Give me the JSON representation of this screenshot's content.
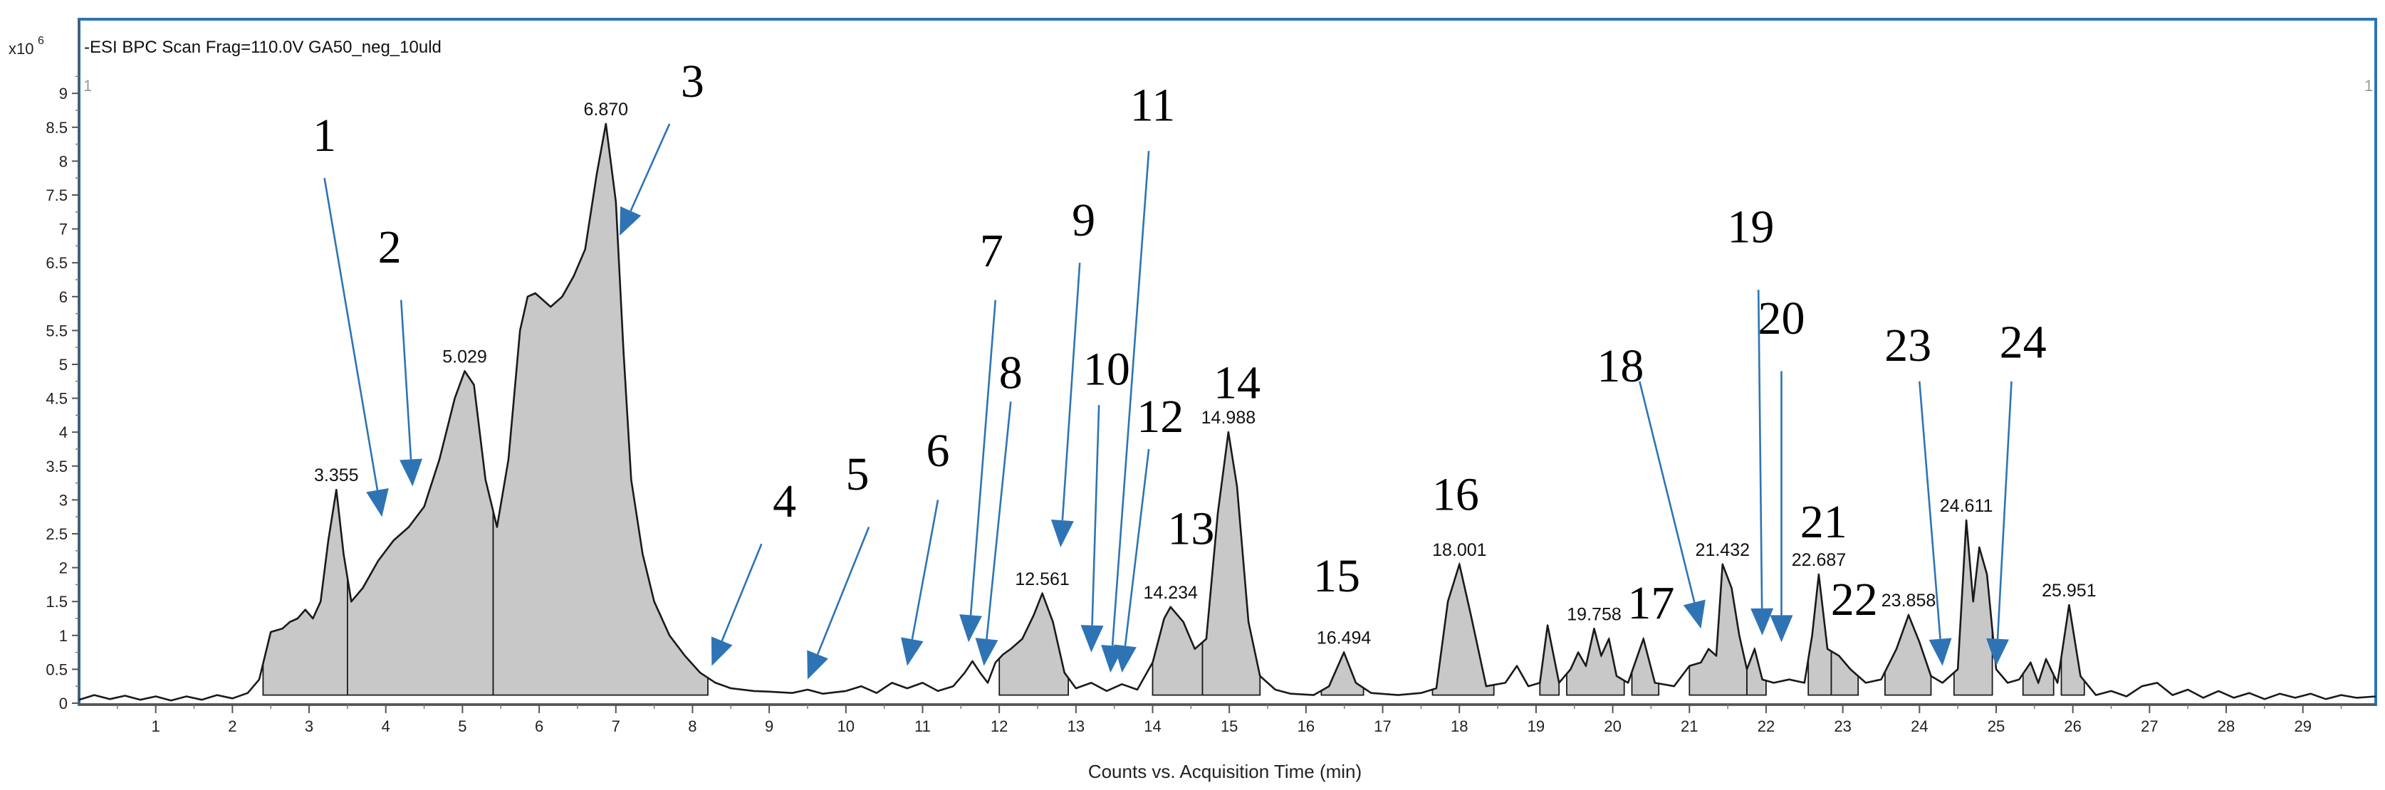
{
  "chart_data": {
    "type": "area",
    "title": "-ESI BPC Scan Frag=110.0V GA50_neg_10uld",
    "xlabel": "Counts vs. Acquisition Time (min)",
    "y_multiplier_label": "x10",
    "y_multiplier_exp": "6",
    "corner_left": "1",
    "corner_right": "1",
    "xlim": [
      0,
      29.95
    ],
    "ylim": [
      0,
      9.5
    ],
    "x_ticks": [
      1,
      2,
      3,
      4,
      5,
      6,
      7,
      8,
      9,
      10,
      11,
      12,
      13,
      14,
      15,
      16,
      17,
      18,
      19,
      20,
      21,
      22,
      23,
      24,
      25,
      26,
      27,
      28,
      29
    ],
    "y_ticks": [
      0,
      0.5,
      1,
      1.5,
      2,
      2.5,
      3,
      3.5,
      4,
      4.5,
      5,
      5.5,
      6,
      6.5,
      7,
      7.5,
      8,
      8.5,
      9
    ],
    "colors": {
      "fill": "#c8c8c8",
      "line": "#1a1a1a",
      "frame": "#2e74b5",
      "arrow": "#2e74b5"
    },
    "series": [
      {
        "points": [
          [
            0,
            0.05
          ],
          [
            0.2,
            0.12
          ],
          [
            0.4,
            0.06
          ],
          [
            0.6,
            0.11
          ],
          [
            0.8,
            0.05
          ],
          [
            1.0,
            0.1
          ],
          [
            1.2,
            0.04
          ],
          [
            1.4,
            0.1
          ],
          [
            1.6,
            0.05
          ],
          [
            1.8,
            0.12
          ],
          [
            2.0,
            0.07
          ],
          [
            2.2,
            0.15
          ],
          [
            2.35,
            0.35
          ],
          [
            2.5,
            1.05
          ],
          [
            2.65,
            1.1
          ],
          [
            2.75,
            1.2
          ],
          [
            2.85,
            1.25
          ],
          [
            2.95,
            1.38
          ],
          [
            3.05,
            1.25
          ],
          [
            3.15,
            1.5
          ],
          [
            3.25,
            2.4
          ],
          [
            3.355,
            3.15
          ],
          [
            3.45,
            2.2
          ],
          [
            3.55,
            1.5
          ],
          [
            3.7,
            1.7
          ],
          [
            3.9,
            2.1
          ],
          [
            4.1,
            2.4
          ],
          [
            4.3,
            2.6
          ],
          [
            4.5,
            2.9
          ],
          [
            4.7,
            3.6
          ],
          [
            4.9,
            4.5
          ],
          [
            5.029,
            4.9
          ],
          [
            5.15,
            4.7
          ],
          [
            5.3,
            3.3
          ],
          [
            5.45,
            2.6
          ],
          [
            5.6,
            3.6
          ],
          [
            5.75,
            5.5
          ],
          [
            5.85,
            6.0
          ],
          [
            5.95,
            6.05
          ],
          [
            6.05,
            5.95
          ],
          [
            6.15,
            5.85
          ],
          [
            6.3,
            6.0
          ],
          [
            6.45,
            6.3
          ],
          [
            6.6,
            6.7
          ],
          [
            6.75,
            7.8
          ],
          [
            6.87,
            8.55
          ],
          [
            7.0,
            7.4
          ],
          [
            7.1,
            5.2
          ],
          [
            7.2,
            3.3
          ],
          [
            7.35,
            2.2
          ],
          [
            7.5,
            1.5
          ],
          [
            7.7,
            1.0
          ],
          [
            7.9,
            0.7
          ],
          [
            8.1,
            0.45
          ],
          [
            8.3,
            0.3
          ],
          [
            8.5,
            0.22
          ],
          [
            8.8,
            0.18
          ],
          [
            9.0,
            0.17
          ],
          [
            9.3,
            0.15
          ],
          [
            9.5,
            0.2
          ],
          [
            9.7,
            0.14
          ],
          [
            10.0,
            0.18
          ],
          [
            10.2,
            0.25
          ],
          [
            10.4,
            0.15
          ],
          [
            10.6,
            0.3
          ],
          [
            10.8,
            0.22
          ],
          [
            11.0,
            0.3
          ],
          [
            11.2,
            0.18
          ],
          [
            11.4,
            0.25
          ],
          [
            11.55,
            0.45
          ],
          [
            11.65,
            0.62
          ],
          [
            11.75,
            0.45
          ],
          [
            11.85,
            0.3
          ],
          [
            11.95,
            0.6
          ],
          [
            12.05,
            0.72
          ],
          [
            12.15,
            0.8
          ],
          [
            12.3,
            0.95
          ],
          [
            12.45,
            1.3
          ],
          [
            12.561,
            1.62
          ],
          [
            12.7,
            1.2
          ],
          [
            12.85,
            0.45
          ],
          [
            13.0,
            0.22
          ],
          [
            13.2,
            0.3
          ],
          [
            13.4,
            0.18
          ],
          [
            13.6,
            0.28
          ],
          [
            13.8,
            0.2
          ],
          [
            14.0,
            0.6
          ],
          [
            14.15,
            1.25
          ],
          [
            14.234,
            1.42
          ],
          [
            14.4,
            1.2
          ],
          [
            14.55,
            0.8
          ],
          [
            14.7,
            0.95
          ],
          [
            14.85,
            2.8
          ],
          [
            14.988,
            4.0
          ],
          [
            15.1,
            3.2
          ],
          [
            15.25,
            1.2
          ],
          [
            15.4,
            0.4
          ],
          [
            15.6,
            0.2
          ],
          [
            15.8,
            0.14
          ],
          [
            16.1,
            0.12
          ],
          [
            16.3,
            0.25
          ],
          [
            16.494,
            0.75
          ],
          [
            16.65,
            0.3
          ],
          [
            16.85,
            0.15
          ],
          [
            17.2,
            0.12
          ],
          [
            17.5,
            0.15
          ],
          [
            17.7,
            0.22
          ],
          [
            17.85,
            1.5
          ],
          [
            18.001,
            2.05
          ],
          [
            18.15,
            1.3
          ],
          [
            18.35,
            0.25
          ],
          [
            18.6,
            0.3
          ],
          [
            18.75,
            0.55
          ],
          [
            18.9,
            0.25
          ],
          [
            19.05,
            0.3
          ],
          [
            19.15,
            1.15
          ],
          [
            19.3,
            0.3
          ],
          [
            19.45,
            0.5
          ],
          [
            19.55,
            0.75
          ],
          [
            19.65,
            0.55
          ],
          [
            19.758,
            1.1
          ],
          [
            19.85,
            0.7
          ],
          [
            19.95,
            0.95
          ],
          [
            20.05,
            0.4
          ],
          [
            20.2,
            0.3
          ],
          [
            20.4,
            0.95
          ],
          [
            20.55,
            0.3
          ],
          [
            20.8,
            0.25
          ],
          [
            21.0,
            0.55
          ],
          [
            21.15,
            0.6
          ],
          [
            21.25,
            0.8
          ],
          [
            21.35,
            0.7
          ],
          [
            21.432,
            2.05
          ],
          [
            21.55,
            1.7
          ],
          [
            21.65,
            1.0
          ],
          [
            21.75,
            0.5
          ],
          [
            21.85,
            0.8
          ],
          [
            21.95,
            0.35
          ],
          [
            22.1,
            0.3
          ],
          [
            22.3,
            0.35
          ],
          [
            22.5,
            0.3
          ],
          [
            22.6,
            1.0
          ],
          [
            22.687,
            1.9
          ],
          [
            22.8,
            0.8
          ],
          [
            22.95,
            0.7
          ],
          [
            23.1,
            0.5
          ],
          [
            23.3,
            0.3
          ],
          [
            23.5,
            0.35
          ],
          [
            23.7,
            0.8
          ],
          [
            23.858,
            1.3
          ],
          [
            24.0,
            0.9
          ],
          [
            24.15,
            0.4
          ],
          [
            24.3,
            0.3
          ],
          [
            24.5,
            0.5
          ],
          [
            24.611,
            2.7
          ],
          [
            24.7,
            1.5
          ],
          [
            24.78,
            2.3
          ],
          [
            24.88,
            1.9
          ],
          [
            25.0,
            0.5
          ],
          [
            25.15,
            0.3
          ],
          [
            25.3,
            0.35
          ],
          [
            25.45,
            0.6
          ],
          [
            25.55,
            0.3
          ],
          [
            25.65,
            0.65
          ],
          [
            25.8,
            0.3
          ],
          [
            25.951,
            1.45
          ],
          [
            26.1,
            0.4
          ],
          [
            26.3,
            0.12
          ],
          [
            26.5,
            0.18
          ],
          [
            26.7,
            0.1
          ],
          [
            26.9,
            0.25
          ],
          [
            27.1,
            0.3
          ],
          [
            27.3,
            0.12
          ],
          [
            27.5,
            0.2
          ],
          [
            27.7,
            0.08
          ],
          [
            27.9,
            0.18
          ],
          [
            28.1,
            0.08
          ],
          [
            28.3,
            0.15
          ],
          [
            28.5,
            0.06
          ],
          [
            28.7,
            0.14
          ],
          [
            28.9,
            0.08
          ],
          [
            29.1,
            0.14
          ],
          [
            29.3,
            0.06
          ],
          [
            29.5,
            0.12
          ],
          [
            29.7,
            0.08
          ],
          [
            29.95,
            0.1
          ]
        ]
      }
    ],
    "filled_regions": [
      [
        2.4,
        3.5
      ],
      [
        3.5,
        5.4
      ],
      [
        5.4,
        8.2
      ],
      [
        12.0,
        12.9
      ],
      [
        14.0,
        14.65
      ],
      [
        14.65,
        15.4
      ],
      [
        16.2,
        16.75
      ],
      [
        17.65,
        18.45
      ],
      [
        19.05,
        19.3
      ],
      [
        19.4,
        20.15
      ],
      [
        20.25,
        20.6
      ],
      [
        21.0,
        21.75
      ],
      [
        21.75,
        22.0
      ],
      [
        22.55,
        22.85
      ],
      [
        22.85,
        23.2
      ],
      [
        23.55,
        24.15
      ],
      [
        24.45,
        24.95
      ],
      [
        25.35,
        25.75
      ],
      [
        25.85,
        26.15
      ]
    ],
    "peak_labels": [
      {
        "x": 3.355,
        "y": 3.15,
        "text": "3.355"
      },
      {
        "x": 5.029,
        "y": 4.9,
        "text": "5.029"
      },
      {
        "x": 6.87,
        "y": 8.55,
        "text": "6.870"
      },
      {
        "x": 12.561,
        "y": 1.62,
        "text": "12.561"
      },
      {
        "x": 14.234,
        "y": 1.42,
        "text": "14.234"
      },
      {
        "x": 14.988,
        "y": 4.0,
        "text": "14.988"
      },
      {
        "x": 16.494,
        "y": 0.75,
        "text": "16.494"
      },
      {
        "x": 18.001,
        "y": 2.05,
        "text": "18.001"
      },
      {
        "x": 19.758,
        "y": 1.1,
        "text": "19.758"
      },
      {
        "x": 21.432,
        "y": 2.05,
        "text": "21.432"
      },
      {
        "x": 22.687,
        "y": 1.9,
        "text": "22.687"
      },
      {
        "x": 23.858,
        "y": 1.3,
        "text": "23.858"
      },
      {
        "x": 24.611,
        "y": 2.7,
        "text": "24.611"
      },
      {
        "x": 25.951,
        "y": 1.45,
        "text": "25.951"
      }
    ],
    "callouts": [
      {
        "text": "1",
        "label_x": 3.2,
        "label_y": 8.15,
        "tail_x": 3.2,
        "tail_y": 7.75,
        "tip_x": 3.95,
        "tip_y": 2.75
      },
      {
        "text": "2",
        "label_x": 4.05,
        "label_y": 6.5,
        "tail_x": 4.2,
        "tail_y": 5.95,
        "tip_x": 4.35,
        "tip_y": 3.2
      },
      {
        "text": "3",
        "label_x": 8.0,
        "label_y": 8.95,
        "tail_x": 7.7,
        "tail_y": 8.55,
        "tip_x": 7.05,
        "tip_y": 6.9
      },
      {
        "text": "4",
        "label_x": 9.2,
        "label_y": 2.75,
        "tail_x": 8.9,
        "tail_y": 2.35,
        "tip_x": 8.25,
        "tip_y": 0.55
      },
      {
        "text": "5",
        "label_x": 10.15,
        "label_y": 3.15,
        "tail_x": 10.3,
        "tail_y": 2.6,
        "tip_x": 9.5,
        "tip_y": 0.35
      },
      {
        "text": "6",
        "label_x": 11.2,
        "label_y": 3.5,
        "tail_x": 11.2,
        "tail_y": 3.0,
        "tip_x": 10.8,
        "tip_y": 0.55
      },
      {
        "text": "7",
        "label_x": 11.9,
        "label_y": 6.45,
        "tail_x": 11.95,
        "tail_y": 5.95,
        "tip_x": 11.6,
        "tip_y": 0.9
      },
      {
        "text": "8",
        "label_x": 12.15,
        "label_y": 4.65,
        "tail_x": 12.15,
        "tail_y": 4.45,
        "tip_x": 11.8,
        "tip_y": 0.55
      },
      {
        "text": "9",
        "label_x": 13.1,
        "label_y": 6.9,
        "tail_x": 13.05,
        "tail_y": 6.5,
        "tip_x": 12.8,
        "tip_y": 2.3
      },
      {
        "text": "10",
        "label_x": 13.4,
        "label_y": 4.7,
        "tail_x": 13.3,
        "tail_y": 4.4,
        "tip_x": 13.2,
        "tip_y": 0.75
      },
      {
        "text": "11",
        "label_x": 14.0,
        "label_y": 8.6,
        "tail_x": 13.95,
        "tail_y": 8.15,
        "tip_x": 13.45,
        "tip_y": 0.45
      },
      {
        "text": "12",
        "label_x": 14.1,
        "label_y": 4.0,
        "tail_x": 13.95,
        "tail_y": 3.75,
        "tip_x": 13.6,
        "tip_y": 0.45
      },
      {
        "text": "13",
        "label_x": 14.5,
        "label_y": 2.35,
        "tail_x": 14.5,
        "tail_y": 2.35,
        "tip_x": 14.5,
        "tip_y": 2.35
      },
      {
        "text": "14",
        "label_x": 15.1,
        "label_y": 4.5,
        "tail_x": 15.1,
        "tail_y": 4.5,
        "tip_x": 15.1,
        "tip_y": 4.5
      },
      {
        "text": "15",
        "label_x": 16.4,
        "label_y": 1.65,
        "tail_x": 16.4,
        "tail_y": 1.65,
        "tip_x": 16.4,
        "tip_y": 1.65
      },
      {
        "text": "16",
        "label_x": 17.95,
        "label_y": 2.85,
        "tail_x": 17.95,
        "tail_y": 2.85,
        "tip_x": 17.95,
        "tip_y": 2.85
      },
      {
        "text": "17",
        "label_x": 20.5,
        "label_y": 1.25,
        "tail_x": 20.5,
        "tail_y": 1.25,
        "tip_x": 20.5,
        "tip_y": 1.25
      },
      {
        "text": "18",
        "label_x": 20.1,
        "label_y": 4.75,
        "tail_x": 20.35,
        "tail_y": 4.75,
        "tip_x": 21.15,
        "tip_y": 1.1
      },
      {
        "text": "19",
        "label_x": 21.8,
        "label_y": 6.8,
        "tail_x": 21.9,
        "tail_y": 6.1,
        "tip_x": 21.95,
        "tip_y": 1.0
      },
      {
        "text": "20",
        "label_x": 22.2,
        "label_y": 5.45,
        "tail_x": 22.2,
        "tail_y": 4.9,
        "tip_x": 22.2,
        "tip_y": 0.9
      },
      {
        "text": "21",
        "label_x": 22.75,
        "label_y": 2.45,
        "tail_x": 22.75,
        "tail_y": 2.45,
        "tip_x": 22.75,
        "tip_y": 2.45
      },
      {
        "text": "22",
        "label_x": 23.15,
        "label_y": 1.3,
        "tail_x": 23.15,
        "tail_y": 1.3,
        "tip_x": 23.15,
        "tip_y": 1.3
      },
      {
        "text": "23",
        "label_x": 23.85,
        "label_y": 5.05,
        "tail_x": 24.0,
        "tail_y": 4.75,
        "tip_x": 24.3,
        "tip_y": 0.55
      },
      {
        "text": "24",
        "label_x": 25.35,
        "label_y": 5.1,
        "tail_x": 25.2,
        "tail_y": 4.75,
        "tip_x": 25.0,
        "tip_y": 0.55
      }
    ]
  }
}
